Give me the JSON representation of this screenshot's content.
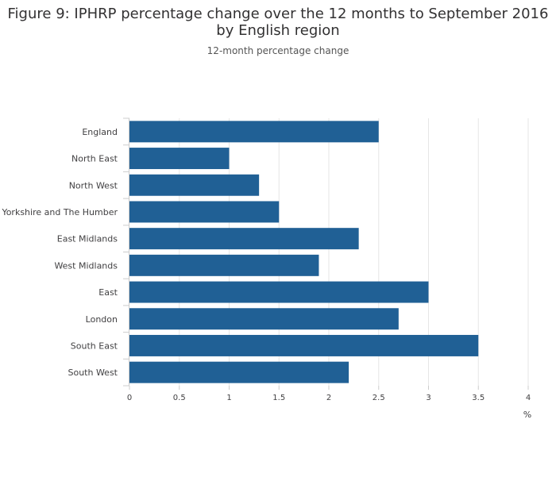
{
  "title_line1": "Figure 9: IPHRP percentage change over the 12 months to September 2016",
  "title_line2": "by English region",
  "subtitle": "12-month percentage change",
  "chart_data": {
    "type": "bar",
    "orientation": "horizontal",
    "title": "Figure 9: IPHRP percentage change over the 12 months to September 2016 by English region",
    "subtitle": "12-month percentage change",
    "categories": [
      "England",
      "North East",
      "North West",
      "Yorkshire and The Humber",
      "East Midlands",
      "West Midlands",
      "East",
      "London",
      "South East",
      "South West"
    ],
    "values": [
      2.5,
      1.0,
      1.3,
      1.5,
      2.3,
      1.9,
      3.0,
      2.7,
      3.5,
      2.2
    ],
    "xlim": [
      0,
      4
    ],
    "xticks": [
      0,
      0.5,
      1,
      1.5,
      2,
      2.5,
      3,
      3.5,
      4
    ],
    "xtick_labels": [
      "0",
      "0.5",
      "1",
      "1.5",
      "2",
      "2.5",
      "3",
      "3.5",
      "4"
    ],
    "xlabel": "%",
    "ylabel": "",
    "grid": true,
    "legend": "none",
    "bar_color": "#206095",
    "grid_color": "#e6e6e6"
  }
}
